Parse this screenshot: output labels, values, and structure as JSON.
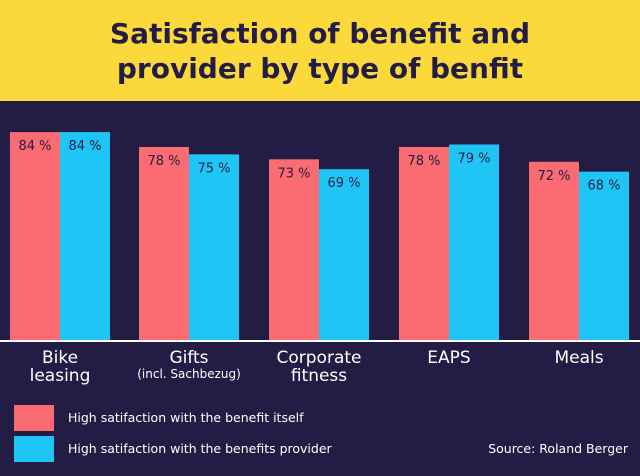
{
  "title_lines": [
    "Satisfaction of benefit and",
    "provider by type of benfit"
  ],
  "colors": {
    "background": "#231d45",
    "title_band": "#fcd93a",
    "series_benefit": "#fb6b72",
    "series_provider": "#1fc6f5",
    "axis": "#ffffff",
    "value_label": "#231d45"
  },
  "chart_data": {
    "type": "bar",
    "title": "Satisfaction of benefit and provider by type of benfit",
    "categories": [
      "Bike leasing",
      "Gifts (incl. Sachbezug)",
      "Corporate fitness",
      "EAPS",
      "Meals"
    ],
    "category_labels": [
      {
        "main": "Bike",
        "main2": "leasing",
        "sub": ""
      },
      {
        "main": "Gifts",
        "main2": "",
        "sub": "(incl. Sachbezug)"
      },
      {
        "main": "Corporate",
        "main2": "fitness",
        "sub": ""
      },
      {
        "main": "EAPS",
        "main2": "",
        "sub": ""
      },
      {
        "main": "Meals",
        "main2": "",
        "sub": ""
      }
    ],
    "series": [
      {
        "name": "High satifaction with the benefit itself",
        "values": [
          84,
          78,
          73,
          78,
          72
        ],
        "labels": [
          "84 %",
          "78 %",
          "73 %",
          "78 %",
          "72 %"
        ]
      },
      {
        "name": "High satifaction with the benefits provider",
        "values": [
          84,
          75,
          69,
          79,
          68
        ],
        "labels": [
          "84 %",
          "75 %",
          "69 %",
          "79 %",
          "68 %"
        ]
      }
    ],
    "ylim": [
      0,
      100
    ],
    "xlabel": "",
    "ylabel": "",
    "grid": false,
    "legend_position": "bottom-left"
  },
  "legend": [
    {
      "label": "High satifaction with the benefit itself",
      "color": "#fb6b72"
    },
    {
      "label": "High satifaction with the benefits provider",
      "color": "#1fc6f5"
    }
  ],
  "source": "Source: Roland Berger"
}
